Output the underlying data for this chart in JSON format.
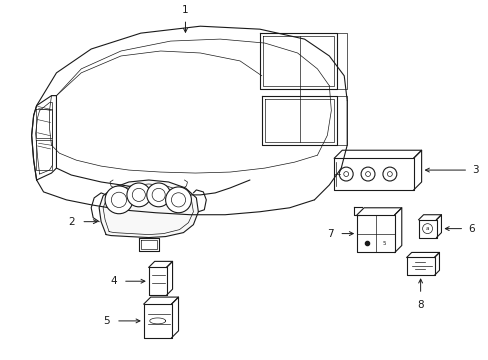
{
  "background_color": "#ffffff",
  "line_color": "#1a1a1a",
  "fig_width": 4.89,
  "fig_height": 3.6,
  "dpi": 100,
  "lw": 0.8,
  "thin_lw": 0.5,
  "label_fontsize": 7.5
}
